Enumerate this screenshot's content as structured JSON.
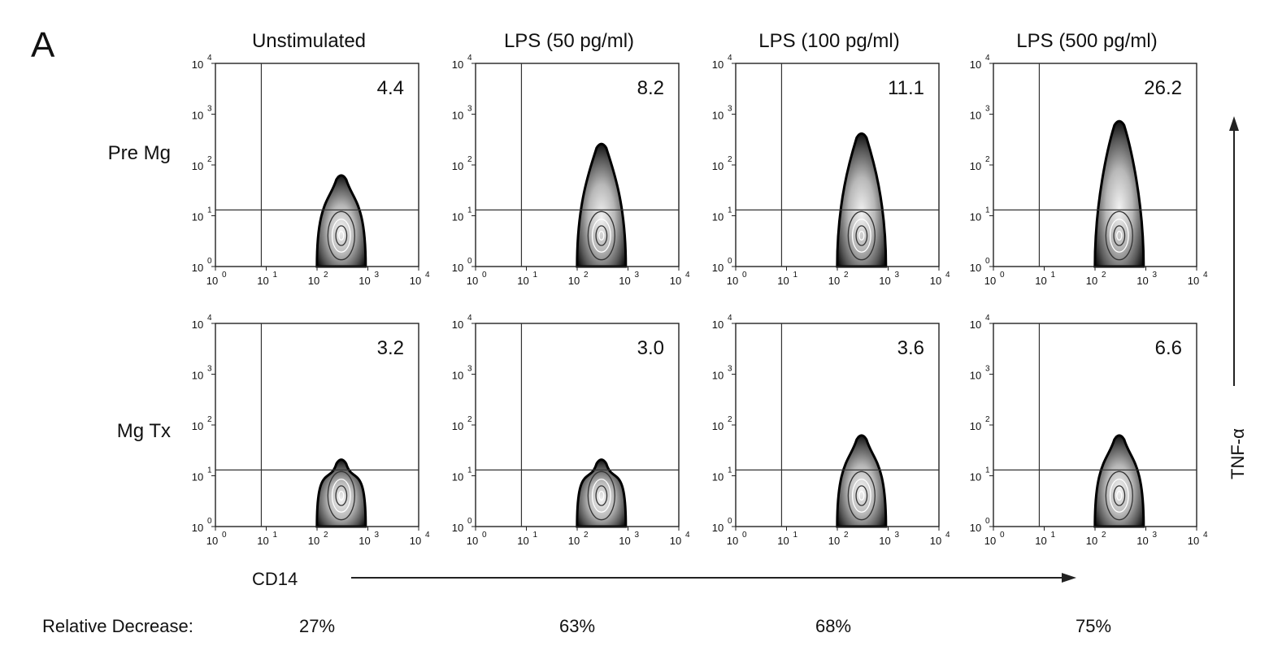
{
  "figure": {
    "panel_letter": "A",
    "column_titles": [
      "Unstimulated",
      "LPS (50 pg/ml)",
      "LPS (100 pg/ml)",
      "LPS (500 pg/ml)"
    ],
    "row_labels": [
      "Pre Mg",
      "Mg Tx"
    ],
    "quadrant_percentages": [
      [
        "4.4",
        "8.2",
        "11.1",
        "26.2"
      ],
      [
        "3.2",
        "3.0",
        "3.6",
        "6.6"
      ]
    ],
    "tick_mantissa": "10",
    "tick_exponents": [
      "0",
      "1",
      "2",
      "3",
      "4"
    ],
    "x_axis_label": "CD14",
    "y_axis_label": "TNF-α",
    "relative_decrease_label": "Relative Decrease:",
    "relative_decrease_values": [
      "27%",
      "63%",
      "68%",
      "75%"
    ]
  },
  "chart_data": {
    "type": "scatter",
    "subtype": "flow cytometry zebra/contour plots, 2 rows x 4 columns",
    "x_axis": {
      "label": "CD14",
      "scale": "log",
      "range": [
        1,
        10000
      ]
    },
    "y_axis": {
      "label": "TNF-α",
      "scale": "log",
      "range": [
        1,
        10000
      ]
    },
    "gates": {
      "x": 8,
      "y": 13
    },
    "population_center_cd14": 300,
    "tnf_positive_upper_extent": [
      [
        60,
        250,
        400,
        700
      ],
      [
        20,
        20,
        60,
        60
      ]
    ],
    "upper_right_quadrant_percent": [
      {
        "row": "Pre Mg",
        "values": [
          4.4,
          8.2,
          11.1,
          26.2
        ]
      },
      {
        "row": "Mg Tx",
        "values": [
          3.2,
          3.0,
          3.6,
          6.6
        ]
      }
    ],
    "relative_decrease_percent": [
      27,
      63,
      68,
      75
    ]
  }
}
